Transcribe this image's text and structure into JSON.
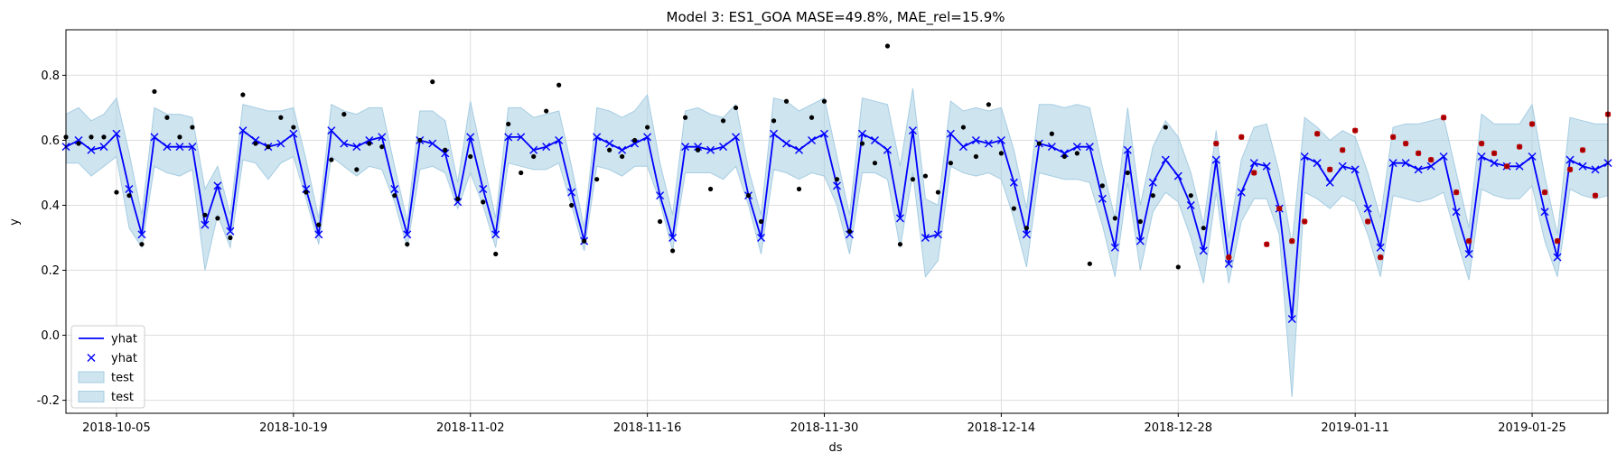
{
  "chart_data": {
    "type": "line",
    "title": "Model 3: ES1_GOA MASE=49.8%, MAE_rel=15.9%",
    "xlabel": "ds",
    "ylabel": "y",
    "x_start": "2018-10-01",
    "x_ticks": [
      "2018-10-05",
      "2018-10-19",
      "2018-11-02",
      "2018-11-16",
      "2018-11-30",
      "2018-12-14",
      "2018-12-28",
      "2019-01-11",
      "2019-01-25"
    ],
    "xlim": [
      "2018-10-01",
      "2019-01-31"
    ],
    "y_ticks": [
      -0.2,
      0.0,
      0.2,
      0.4,
      0.6,
      0.8
    ],
    "ylim": [
      -0.24,
      0.94
    ],
    "grid": true,
    "legend_position": "lower-left",
    "legend": [
      {
        "label": "yhat",
        "kind": "line"
      },
      {
        "label": "yhat",
        "kind": "marker"
      },
      {
        "label": "test",
        "kind": "band"
      },
      {
        "label": "test",
        "kind": "band"
      }
    ],
    "colors": {
      "yhat": "#0000ff",
      "band": "#a6cde2",
      "actual": "#000000",
      "test_actual": "#cc0000"
    },
    "yhat": [
      0.58,
      0.6,
      0.57,
      0.58,
      0.62,
      0.45,
      0.31,
      0.61,
      0.58,
      0.58,
      0.58,
      0.34,
      0.46,
      0.32,
      0.63,
      0.6,
      0.58,
      0.59,
      0.62,
      0.45,
      0.31,
      0.63,
      0.59,
      0.58,
      0.6,
      0.61,
      0.45,
      0.31,
      0.6,
      0.59,
      0.56,
      0.41,
      0.61,
      0.45,
      0.31,
      0.61,
      0.61,
      0.57,
      0.58,
      0.6,
      0.44,
      0.29,
      0.61,
      0.59,
      0.57,
      0.59,
      0.61,
      0.43,
      0.3,
      0.58,
      0.58,
      0.57,
      0.58,
      0.61,
      0.43,
      0.3,
      0.62,
      0.59,
      0.57,
      0.6,
      0.62,
      0.46,
      0.31,
      0.62,
      0.6,
      0.57,
      0.36,
      0.63,
      0.3,
      0.31,
      0.62,
      0.58,
      0.6,
      0.59,
      0.6,
      0.47,
      0.31,
      0.59,
      0.58,
      0.56,
      0.58,
      0.58,
      0.42,
      0.27,
      0.57,
      0.29,
      0.47,
      0.54,
      0.49,
      0.4,
      0.26,
      0.54,
      0.22,
      0.44,
      0.53,
      0.52,
      0.39,
      0.05,
      0.55,
      0.53,
      0.47,
      0.52,
      0.51,
      0.39,
      0.27,
      0.53,
      0.53,
      0.51,
      0.52,
      0.55,
      0.38,
      0.25,
      0.55,
      0.53,
      0.52,
      0.52,
      0.55,
      0.38,
      0.24,
      0.54,
      0.52,
      0.51,
      0.53
    ],
    "band_lower": [
      0.53,
      0.53,
      0.49,
      0.52,
      0.55,
      0.33,
      0.27,
      0.52,
      0.5,
      0.49,
      0.51,
      0.2,
      0.37,
      0.27,
      0.54,
      0.53,
      0.48,
      0.53,
      0.55,
      0.42,
      0.28,
      0.55,
      0.52,
      0.49,
      0.52,
      0.51,
      0.41,
      0.27,
      0.51,
      0.52,
      0.5,
      0.39,
      0.5,
      0.4,
      0.27,
      0.53,
      0.52,
      0.51,
      0.51,
      0.53,
      0.4,
      0.26,
      0.52,
      0.51,
      0.49,
      0.52,
      0.52,
      0.41,
      0.26,
      0.5,
      0.5,
      0.5,
      0.48,
      0.52,
      0.4,
      0.25,
      0.51,
      0.5,
      0.48,
      0.5,
      0.49,
      0.4,
      0.25,
      0.5,
      0.5,
      0.48,
      0.27,
      0.5,
      0.18,
      0.23,
      0.52,
      0.5,
      0.49,
      0.5,
      0.48,
      0.36,
      0.21,
      0.5,
      0.49,
      0.48,
      0.48,
      0.47,
      0.34,
      0.18,
      0.47,
      0.2,
      0.38,
      0.44,
      0.41,
      0.3,
      0.16,
      0.44,
      0.16,
      0.35,
      0.42,
      0.42,
      0.31,
      -0.19,
      0.44,
      0.42,
      0.39,
      0.43,
      0.41,
      0.31,
      0.18,
      0.43,
      0.42,
      0.41,
      0.42,
      0.44,
      0.3,
      0.17,
      0.45,
      0.43,
      0.42,
      0.42,
      0.46,
      0.29,
      0.18,
      0.45,
      0.43,
      0.42,
      0.43
    ],
    "band_upper": [
      0.68,
      0.7,
      0.66,
      0.68,
      0.73,
      0.56,
      0.37,
      0.7,
      0.68,
      0.68,
      0.67,
      0.45,
      0.52,
      0.37,
      0.71,
      0.7,
      0.69,
      0.69,
      0.7,
      0.54,
      0.36,
      0.71,
      0.69,
      0.68,
      0.7,
      0.7,
      0.52,
      0.35,
      0.69,
      0.69,
      0.66,
      0.47,
      0.72,
      0.54,
      0.36,
      0.7,
      0.7,
      0.67,
      0.68,
      0.69,
      0.52,
      0.33,
      0.7,
      0.69,
      0.67,
      0.69,
      0.74,
      0.53,
      0.37,
      0.69,
      0.7,
      0.68,
      0.67,
      0.71,
      0.51,
      0.37,
      0.73,
      0.72,
      0.69,
      0.71,
      0.73,
      0.55,
      0.37,
      0.73,
      0.72,
      0.71,
      0.52,
      0.76,
      0.42,
      0.4,
      0.72,
      0.69,
      0.7,
      0.69,
      0.7,
      0.57,
      0.39,
      0.71,
      0.71,
      0.7,
      0.71,
      0.7,
      0.52,
      0.36,
      0.7,
      0.4,
      0.58,
      0.66,
      0.61,
      0.5,
      0.34,
      0.63,
      0.3,
      0.54,
      0.64,
      0.65,
      0.5,
      0.28,
      0.67,
      0.64,
      0.6,
      0.63,
      0.61,
      0.5,
      0.36,
      0.64,
      0.65,
      0.65,
      0.66,
      0.67,
      0.5,
      0.33,
      0.68,
      0.65,
      0.65,
      0.65,
      0.71,
      0.49,
      0.31,
      0.67,
      0.66,
      0.65,
      0.65
    ],
    "actual": [
      0.61,
      0.59,
      0.61,
      0.61,
      0.44,
      0.43,
      0.28,
      0.75,
      0.67,
      0.61,
      0.64,
      0.37,
      0.36,
      0.3,
      0.74,
      0.59,
      0.58,
      0.67,
      0.64,
      0.44,
      0.34,
      0.54,
      0.68,
      0.51,
      0.59,
      0.58,
      0.43,
      0.28,
      0.6,
      0.78,
      0.57,
      0.42,
      0.55,
      0.41,
      0.25,
      0.65,
      0.5,
      0.55,
      0.69,
      0.77,
      0.4,
      0.29,
      0.48,
      0.57,
      0.55,
      0.6,
      0.64,
      0.35,
      0.26,
      0.67,
      0.57,
      0.45,
      0.66,
      0.7,
      0.43,
      0.35,
      0.66,
      0.72,
      0.45,
      0.67,
      0.72,
      0.48,
      0.32,
      0.59,
      0.53,
      0.89,
      0.28,
      0.48,
      0.49,
      0.44,
      0.53,
      0.64,
      0.55,
      0.71,
      0.56,
      0.39,
      0.33,
      0.59,
      0.62,
      0.55,
      0.56,
      0.22,
      0.46,
      0.36,
      0.5,
      0.35,
      0.43,
      0.64,
      0.21,
      0.43,
      0.33,
      0.59,
      0.24,
      0.61,
      0.5,
      0.28,
      0.39,
      0.29,
      0.35,
      0.62,
      0.51,
      0.57,
      0.63,
      0.35,
      0.24,
      0.61,
      0.59,
      0.56,
      0.54,
      0.67,
      0.44,
      0.29,
      0.59,
      0.56,
      0.52,
      0.58,
      0.65,
      0.44,
      0.29,
      0.51,
      0.57,
      0.43,
      0.68
    ],
    "test_start_index": 91
  }
}
